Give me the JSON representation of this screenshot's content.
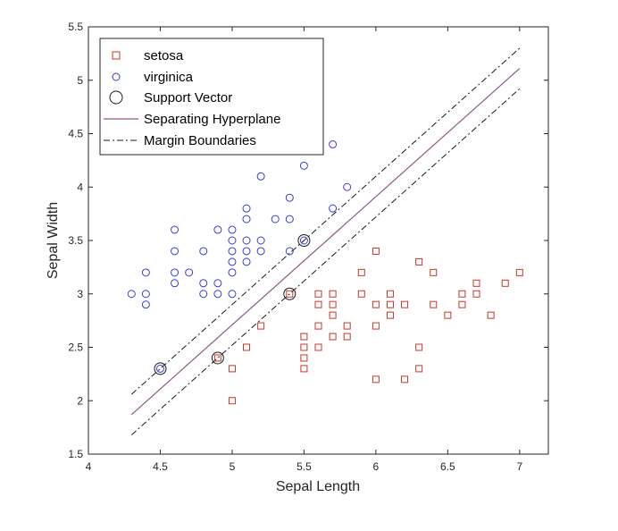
{
  "chart_data": {
    "type": "scatter",
    "xlabel": "Sepal Length",
    "ylabel": "Sepal Width",
    "xlim": [
      4,
      7.2
    ],
    "ylim": [
      1.5,
      5.5
    ],
    "x_ticks": [
      "4",
      "4.5",
      "5",
      "5.5",
      "6",
      "6.5",
      "7"
    ],
    "y_ticks": [
      "1.5",
      "2",
      "2.5",
      "3",
      "3.5",
      "4",
      "4.5",
      "5",
      "5.5"
    ],
    "grid": false,
    "legend_position": "top-left",
    "series": [
      {
        "name": "setosa",
        "marker": "square",
        "color": "#c0392b",
        "points": [
          [
            4.9,
            2.4
          ],
          [
            5.0,
            2.3
          ],
          [
            5.0,
            2.0
          ],
          [
            5.1,
            2.5
          ],
          [
            5.2,
            2.7
          ],
          [
            5.4,
            3.0
          ],
          [
            5.5,
            2.6
          ],
          [
            5.5,
            2.5
          ],
          [
            5.5,
            2.4
          ],
          [
            5.5,
            2.3
          ],
          [
            5.6,
            3.0
          ],
          [
            5.6,
            2.9
          ],
          [
            5.6,
            2.7
          ],
          [
            5.6,
            2.5
          ],
          [
            5.7,
            3.0
          ],
          [
            5.7,
            2.9
          ],
          [
            5.7,
            2.8
          ],
          [
            5.7,
            2.6
          ],
          [
            5.8,
            2.7
          ],
          [
            5.8,
            2.6
          ],
          [
            5.9,
            3.2
          ],
          [
            5.9,
            3.0
          ],
          [
            6.0,
            3.4
          ],
          [
            6.0,
            2.9
          ],
          [
            6.0,
            2.7
          ],
          [
            6.0,
            2.2
          ],
          [
            6.1,
            3.0
          ],
          [
            6.1,
            2.9
          ],
          [
            6.1,
            2.8
          ],
          [
            6.2,
            2.9
          ],
          [
            6.2,
            2.2
          ],
          [
            6.3,
            3.3
          ],
          [
            6.3,
            2.5
          ],
          [
            6.3,
            2.3
          ],
          [
            6.4,
            3.2
          ],
          [
            6.4,
            2.9
          ],
          [
            6.5,
            2.8
          ],
          [
            6.6,
            3.0
          ],
          [
            6.6,
            2.9
          ],
          [
            6.7,
            3.1
          ],
          [
            6.7,
            3.0
          ],
          [
            6.8,
            2.8
          ],
          [
            6.9,
            3.1
          ],
          [
            7.0,
            3.2
          ]
        ]
      },
      {
        "name": "virginica",
        "marker": "circle",
        "color": "#3b3bd6",
        "points": [
          [
            4.3,
            3.0
          ],
          [
            4.4,
            3.2
          ],
          [
            4.4,
            3.0
          ],
          [
            4.4,
            2.9
          ],
          [
            4.5,
            2.3
          ],
          [
            4.6,
            3.6
          ],
          [
            4.6,
            3.4
          ],
          [
            4.6,
            3.2
          ],
          [
            4.6,
            3.1
          ],
          [
            4.7,
            3.2
          ],
          [
            4.8,
            3.4
          ],
          [
            4.8,
            3.1
          ],
          [
            4.8,
            3.0
          ],
          [
            4.9,
            3.6
          ],
          [
            4.9,
            3.1
          ],
          [
            4.9,
            3.0
          ],
          [
            5.0,
            3.6
          ],
          [
            5.0,
            3.5
          ],
          [
            5.0,
            3.4
          ],
          [
            5.0,
            3.3
          ],
          [
            5.0,
            3.2
          ],
          [
            5.0,
            3.0
          ],
          [
            5.1,
            3.8
          ],
          [
            5.1,
            3.7
          ],
          [
            5.1,
            3.5
          ],
          [
            5.1,
            3.4
          ],
          [
            5.1,
            3.3
          ],
          [
            5.2,
            4.1
          ],
          [
            5.2,
            3.5
          ],
          [
            5.2,
            3.4
          ],
          [
            5.3,
            3.7
          ],
          [
            5.4,
            3.9
          ],
          [
            5.4,
            3.7
          ],
          [
            5.4,
            3.4
          ],
          [
            5.5,
            4.2
          ],
          [
            5.5,
            3.5
          ],
          [
            5.7,
            4.4
          ],
          [
            5.7,
            3.8
          ],
          [
            5.8,
            4.0
          ]
        ]
      },
      {
        "name": "Support Vector",
        "marker": "circle-large",
        "color": "#1a1a1a",
        "points": [
          [
            4.5,
            2.3
          ],
          [
            4.9,
            2.4
          ],
          [
            5.4,
            3.0
          ],
          [
            5.5,
            3.5
          ]
        ]
      },
      {
        "name": "Separating Hyperplane",
        "type": "line",
        "style": "solid",
        "color": "#8c5a8c",
        "points": [
          [
            4.3,
            1.87
          ],
          [
            7.0,
            5.11
          ]
        ]
      },
      {
        "name": "Margin Boundaries",
        "type": "line",
        "style": "dash-dot",
        "color": "#1a1a1a",
        "lines": [
          [
            [
              4.3,
              2.06
            ],
            [
              7.0,
              5.3
            ]
          ],
          [
            [
              4.3,
              1.68
            ],
            [
              7.0,
              4.92
            ]
          ]
        ]
      }
    ]
  }
}
